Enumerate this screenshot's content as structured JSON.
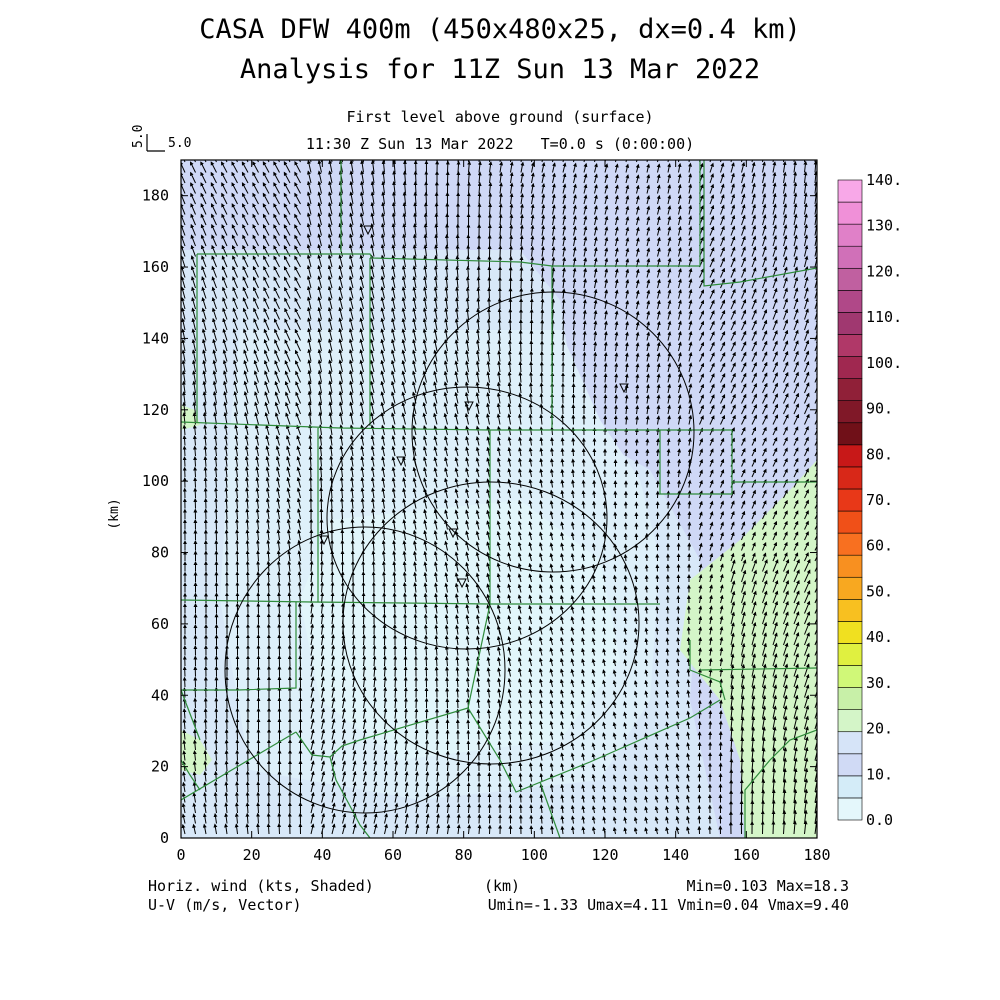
{
  "header": {
    "title_line1": "CASA DFW 400m (450x480x25, dx=0.4 km)",
    "title_line2": "Analysis for 11Z Sun 13 Mar 2022",
    "subtitle_level": "First level above ground (surface)",
    "subtitle_time": "11:30 Z Sun 13 Mar 2022   T=0.0 s (0:00:00)",
    "ref_vector_value": "5.0",
    "ref_vector_label": "5.0"
  },
  "footer": {
    "left_line1": "Horiz. wind (kts, Shaded)",
    "left_line2": "U-V (m/s, Vector)",
    "center": "(km)",
    "right_line1": "Min=0.103 Max=18.3",
    "right_line2": "Umin=-1.33 Umax=4.11 Vmin=0.04 Vmax=9.40"
  },
  "chart_data": {
    "type": "heatmap",
    "xlabel": "(km)",
    "ylabel": "(km)",
    "xlim": [
      0,
      180
    ],
    "ylim": [
      0,
      190
    ],
    "x_ticks": [
      0,
      20,
      40,
      60,
      80,
      100,
      120,
      140,
      160,
      180
    ],
    "y_ticks": [
      0,
      20,
      40,
      60,
      80,
      100,
      120,
      140,
      160,
      180
    ],
    "colorbar": {
      "labels": [
        "0.0",
        "10.",
        "20.",
        "30.",
        "40.",
        "50.",
        "60.",
        "70.",
        "80.",
        "90.",
        "100.",
        "110.",
        "120.",
        "130.",
        "140."
      ],
      "colors": [
        "#e4f7fb",
        "#d4ecf8",
        "#d0daf5",
        "#d6e4f8",
        "#d4f5c8",
        "#c8f0a8",
        "#d0f878",
        "#e0f040",
        "#f0e020",
        "#f8c020",
        "#f8a820",
        "#f89020",
        "#f87020",
        "#f05018",
        "#e83818",
        "#d82818",
        "#c81818",
        "#701018",
        "#801828",
        "#902038",
        "#a02850",
        "#b03868",
        "#a03870",
        "#b04888",
        "#c060a0",
        "#d070b8",
        "#e080c8",
        "#f090d8",
        "#f8a8e8"
      ]
    },
    "wind_field": {
      "u_min": -1.33,
      "u_max": 4.11,
      "v_min": 0.04,
      "v_max": 9.4,
      "speed_min": 0.103,
      "speed_max": 18.3,
      "dominant_direction": "from south (northward flow)"
    },
    "radar_sites_km": [
      [
        53,
        172
      ],
      [
        63,
        107
      ],
      [
        82,
        122
      ],
      [
        126,
        127
      ],
      [
        77,
        86
      ],
      [
        40,
        84
      ],
      [
        80,
        72
      ]
    ],
    "radar_range_rings": [
      {
        "center_km": [
          52,
          48
        ],
        "radius_km": 40
      },
      {
        "center_km": [
          81,
          91
        ],
        "radius_km": 40
      },
      {
        "center_km": [
          88,
          60
        ],
        "radius_km": 42
      },
      {
        "center_km": [
          107,
          115
        ],
        "radius_km": 40
      }
    ]
  }
}
